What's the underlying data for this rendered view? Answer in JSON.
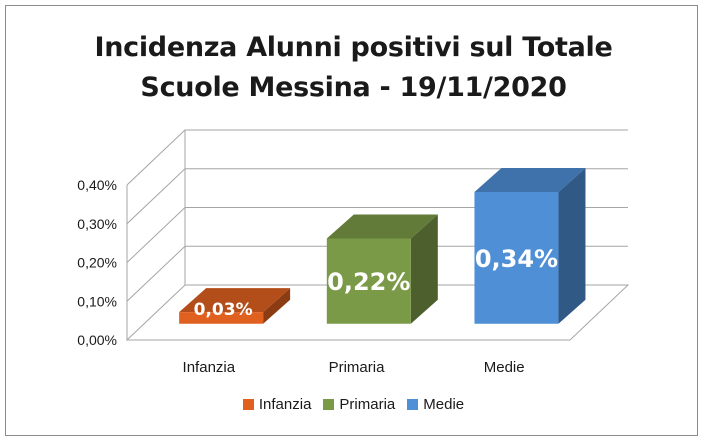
{
  "chart_data": {
    "type": "bar",
    "title_lines": [
      "Incidenza Alunni positivi sul Totale",
      "Scuole Messina - 19/11/2020"
    ],
    "categories": [
      "Infanzia",
      "Primaria",
      "Medie"
    ],
    "values": [
      0.03,
      0.22,
      0.34
    ],
    "data_labels": [
      "0,03%",
      "0,22%",
      "0,34%"
    ],
    "colors": [
      "#e0601f",
      "#7a9a47",
      "#4f8fd6"
    ],
    "y_ticks": [
      0,
      0.1,
      0.2,
      0.3,
      0.4
    ],
    "y_tick_labels": [
      "0,00%",
      "0,10%",
      "0,20%",
      "0,30%",
      "0,40%"
    ],
    "ylim": [
      0,
      0.4
    ],
    "grid": true,
    "legend_position": "bottom",
    "style": "3d"
  }
}
